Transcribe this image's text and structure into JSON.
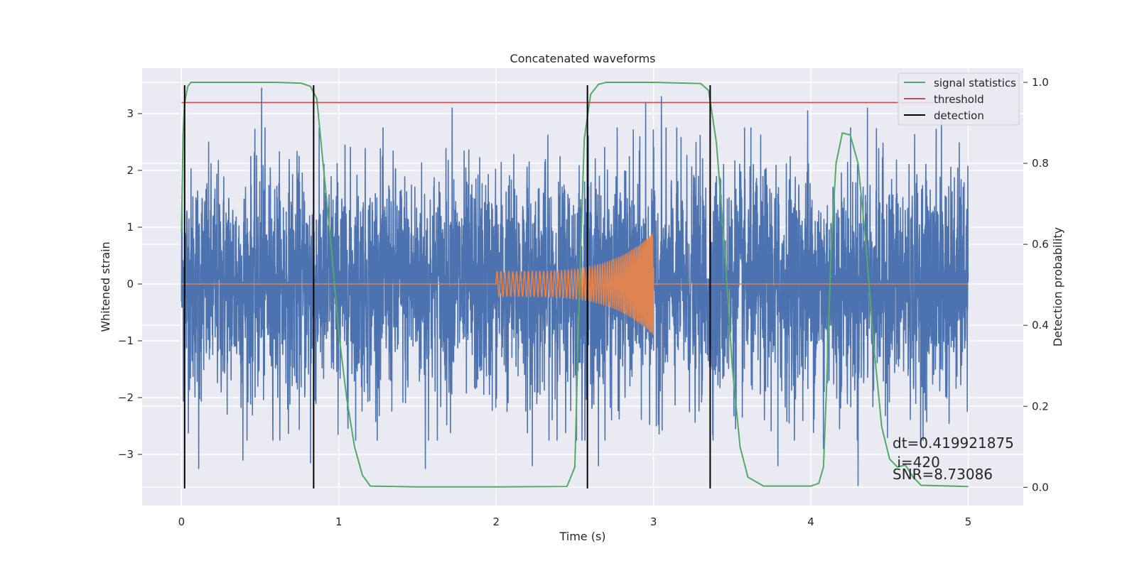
{
  "chart_data": {
    "type": "line",
    "title": "Concatenated waveforms",
    "xlabel": "Time (s)",
    "ylabel": "Whitened strain",
    "ylabel_right": "Detection probability",
    "xlim": [
      -0.25,
      5.35
    ],
    "ylim": [
      -3.9,
      3.8
    ],
    "ylim_right": [
      -0.045,
      1.035
    ],
    "x_ticks": [
      0,
      1,
      2,
      3,
      4,
      5
    ],
    "y_ticks": [
      -3,
      -2,
      -1,
      0,
      1,
      2,
      3
    ],
    "y_ticks_right": [
      0.0,
      0.2,
      0.4,
      0.6,
      0.8,
      1.0
    ],
    "x_tick_labels": [
      "0",
      "1",
      "2",
      "3",
      "4",
      "5"
    ],
    "y_tick_labels": [
      "−3",
      "−2",
      "−1",
      "0",
      "1",
      "2",
      "3"
    ],
    "y_tick_labels_right": [
      "0.0",
      "0.2",
      "0.4",
      "0.6",
      "0.8",
      "1.0"
    ],
    "grid": true,
    "legend_position": "top-right",
    "legend": [
      {
        "label": "signal statistics",
        "color": "#55a868"
      },
      {
        "label": "threshold",
        "color": "#c44e52"
      },
      {
        "label": "detection",
        "color": "#000000"
      }
    ],
    "series": [
      {
        "role": "whitened strain noise",
        "axis": "left",
        "color": "#4c72b0",
        "x_range": [
          0,
          5
        ],
        "typical_amplitude": 1.0,
        "spike_peaks": [
          {
            "x": 0.51,
            "y": 3.45
          },
          {
            "x": 0.11,
            "y": -3.25
          },
          {
            "x": 0.39,
            "y": -3.1
          },
          {
            "x": 0.82,
            "y": -3.15
          },
          {
            "x": 1.55,
            "y": -3.25
          },
          {
            "x": 1.72,
            "y": 3.1
          },
          {
            "x": 2.23,
            "y": -3.2
          },
          {
            "x": 2.65,
            "y": -3.2
          },
          {
            "x": 2.95,
            "y": 3.2
          },
          {
            "x": 3.05,
            "y": 3.3
          },
          {
            "x": 3.79,
            "y": -3.2
          },
          {
            "x": 3.98,
            "y": 3.05
          },
          {
            "x": 4.08,
            "y": -2.9
          },
          {
            "x": 4.3,
            "y": -3.55
          },
          {
            "x": 4.36,
            "y": 3.1
          },
          {
            "x": 4.83,
            "y": 3.0
          }
        ]
      },
      {
        "role": "injected chirp",
        "axis": "left",
        "color": "#dd8452",
        "x_range": [
          0,
          5
        ],
        "chirp_start": 2.0,
        "chirp_end": 3.0,
        "amplitude_start": 0.22,
        "amplitude_end": 0.9,
        "frequency_start_hz": 40,
        "frequency_end_hz": 120
      },
      {
        "label": "signal statistics",
        "axis": "right",
        "color": "#55a868",
        "x": [
          0.0,
          0.01,
          0.02,
          0.04,
          0.06,
          0.1,
          0.3,
          0.6,
          0.76,
          0.82,
          0.86,
          0.9,
          0.95,
          1.0,
          1.05,
          1.1,
          1.15,
          1.2,
          1.5,
          2.0,
          2.45,
          2.5,
          2.53,
          2.56,
          2.6,
          2.65,
          2.7,
          2.8,
          3.0,
          3.3,
          3.35,
          3.4,
          3.45,
          3.5,
          3.55,
          3.6,
          3.7,
          4.0,
          4.05,
          4.08,
          4.1,
          4.13,
          4.16,
          4.2,
          4.25,
          4.3,
          4.35,
          4.4,
          4.45,
          4.5,
          4.55,
          4.6,
          4.65,
          4.7,
          5.0
        ],
        "y": [
          0.63,
          0.87,
          0.95,
          0.99,
          1.0,
          1.0,
          1.0,
          1.0,
          0.998,
          0.99,
          0.96,
          0.8,
          0.6,
          0.38,
          0.22,
          0.1,
          0.03,
          0.003,
          0.001,
          0.001,
          0.002,
          0.05,
          0.5,
          0.86,
          0.97,
          0.995,
          1.0,
          1.0,
          1.0,
          0.997,
          0.98,
          0.85,
          0.6,
          0.3,
          0.1,
          0.025,
          0.003,
          0.003,
          0.01,
          0.05,
          0.25,
          0.6,
          0.8,
          0.875,
          0.87,
          0.8,
          0.6,
          0.35,
          0.15,
          0.07,
          0.05,
          0.055,
          0.025,
          0.005,
          0.002
        ]
      },
      {
        "label": "threshold",
        "axis": "right",
        "color": "#c44e52",
        "x": [
          0,
          5
        ],
        "y": [
          0.95,
          0.95
        ]
      },
      {
        "label": "detection",
        "axis": "left",
        "color": "#000000",
        "x": [
          0.02,
          0.84,
          2.58,
          3.36
        ],
        "y_range": [
          -3.6,
          3.5
        ]
      }
    ],
    "annotations": [
      "dt=0.419921875",
      " i=420",
      "SNR=8.73086"
    ]
  }
}
